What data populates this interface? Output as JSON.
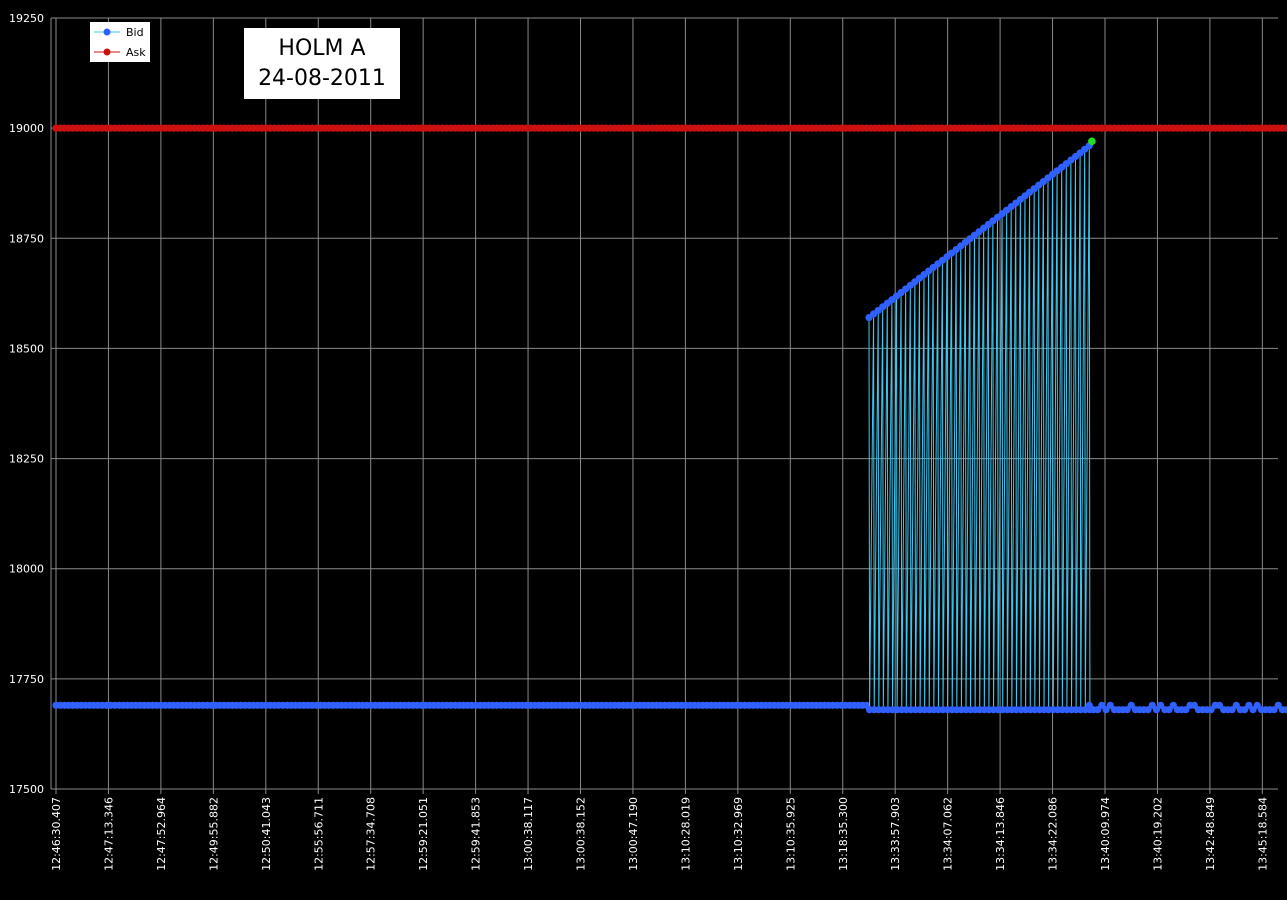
{
  "chart_data": {
    "type": "line",
    "title": "HOLM A",
    "subtitle": "24-08-2011",
    "ylim": [
      17500,
      19250
    ],
    "yticks": [
      17500,
      17750,
      18000,
      18250,
      18500,
      18750,
      19000,
      19250
    ],
    "xticks": [
      "12:46:30.407",
      "12:47:13.346",
      "12:47:52.964",
      "12:49:55.882",
      "12:50:41.043",
      "12:55:56.711",
      "12:57:34.708",
      "12:59:21.051",
      "12:59:41.853",
      "13:00:38.117",
      "13:00:38.152",
      "13:00:47.190",
      "13:10:28.019",
      "13:10:32.969",
      "13:10:35.925",
      "13:18:35.300",
      "13:33:57.903",
      "13:34:07.062",
      "13:34:13.846",
      "13:34:22.086",
      "13:40:09.974",
      "13:40:19.202",
      "13:42:48.849",
      "13:45:18.584"
    ],
    "grid": true,
    "legend": "top-left",
    "series": [
      {
        "name": "Bid",
        "color": "#3060ff",
        "line_color": "#3ec8f0",
        "segments": [
          {
            "type": "flat",
            "x_from": 0,
            "x_to": 15.5,
            "y": 17690
          },
          {
            "type": "sawtooth",
            "x_from": 15.5,
            "x_to": 19.7,
            "high_from": 18570,
            "high_to": 18960,
            "low": 17680
          },
          {
            "type": "noisy",
            "x_from": 19.7,
            "x_to": 23.9,
            "y_values": [
              17690,
              17680
            ]
          }
        ]
      },
      {
        "name": "Ask",
        "color": "#cc1010",
        "line_color": "#cc1010",
        "segments": [
          {
            "type": "flat",
            "x_from": 0,
            "x_to": 23.9,
            "y": 19000
          }
        ]
      }
    ],
    "highlight_point": {
      "x": 19.75,
      "y": 18970,
      "color": "#22dd22"
    }
  }
}
